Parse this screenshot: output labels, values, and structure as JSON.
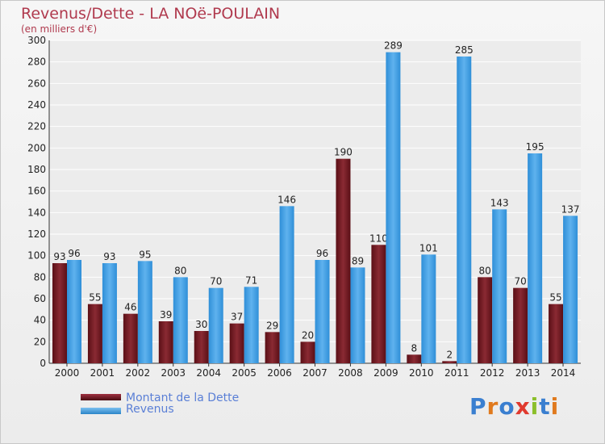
{
  "chart_data": {
    "type": "bar",
    "title": "Revenus/Dette - LA NOë-POULAIN",
    "subtitle": "(en milliers d'€)",
    "categories": [
      "2000",
      "2001",
      "2002",
      "2003",
      "2004",
      "2005",
      "2006",
      "2007",
      "2008",
      "2009",
      "2010",
      "2011",
      "2012",
      "2013",
      "2014"
    ],
    "series": [
      {
        "name": "Montant de la Dette",
        "color": "#7a1a22",
        "values": [
          93,
          55,
          46,
          39,
          30,
          37,
          29,
          20,
          190,
          110,
          8,
          2,
          80,
          70,
          55
        ]
      },
      {
        "name": "Revenus",
        "color": "#3f9ee0",
        "values": [
          96,
          93,
          95,
          80,
          70,
          71,
          146,
          96,
          89,
          289,
          101,
          285,
          143,
          195,
          137
        ]
      }
    ],
    "ylim": [
      0,
      300
    ],
    "yticks": [
      0,
      20,
      40,
      60,
      80,
      100,
      120,
      140,
      160,
      180,
      200,
      220,
      240,
      260,
      280,
      300
    ],
    "grid": true,
    "legend_position": "bottom-left"
  },
  "legend": {
    "debt_label": "Montant de la Dette",
    "revenue_label": "Revenus"
  },
  "logo": {
    "text": "Proxiti"
  }
}
